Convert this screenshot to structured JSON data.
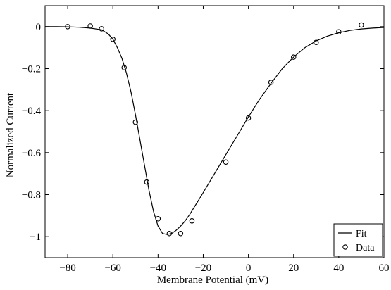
{
  "chart_data": {
    "type": "scatter",
    "title": "",
    "xlabel": "Membrane Potential (mV)",
    "ylabel": "Normalized Current",
    "xlim": [
      -90,
      60
    ],
    "ylim": [
      -1.1,
      0.1
    ],
    "x_ticks": [
      -80,
      -60,
      -40,
      -20,
      0,
      20,
      40,
      60
    ],
    "y_ticks": [
      0,
      -0.2,
      -0.4,
      -0.6,
      -0.8,
      -1
    ],
    "x_tick_labels": [
      "−80",
      "−60",
      "−40",
      "−20",
      "0",
      "20",
      "40",
      "60"
    ],
    "y_tick_labels": [
      "0",
      "−0.2",
      "−0.4",
      "−0.6",
      "−0.8",
      "−1"
    ],
    "grid": false,
    "legend": {
      "position": "bottom-right",
      "entries": [
        "Fit",
        "Data"
      ]
    },
    "series": [
      {
        "name": "Fit",
        "type": "line",
        "x": [
          -90,
          -85,
          -80,
          -75,
          -70,
          -65,
          -62,
          -60,
          -58,
          -56,
          -54,
          -52,
          -50,
          -48,
          -46,
          -44,
          -42,
          -40,
          -38,
          -36,
          -34,
          -32,
          -30,
          -28,
          -26,
          -24,
          -22,
          -20,
          -15,
          -10,
          -5,
          0,
          5,
          10,
          15,
          20,
          25,
          30,
          35,
          40,
          45,
          50,
          55,
          60
        ],
        "y": [
          0,
          0,
          -0.001,
          -0.003,
          -0.007,
          -0.015,
          -0.035,
          -0.06,
          -0.1,
          -0.15,
          -0.22,
          -0.31,
          -0.42,
          -0.54,
          -0.66,
          -0.78,
          -0.88,
          -0.95,
          -0.985,
          -0.99,
          -0.985,
          -0.97,
          -0.95,
          -0.925,
          -0.895,
          -0.86,
          -0.825,
          -0.79,
          -0.7,
          -0.61,
          -0.52,
          -0.43,
          -0.345,
          -0.27,
          -0.2,
          -0.145,
          -0.1,
          -0.068,
          -0.045,
          -0.029,
          -0.018,
          -0.011,
          -0.007,
          -0.004
        ]
      },
      {
        "name": "Data",
        "type": "scatter",
        "x": [
          -80,
          -70,
          -65,
          -60,
          -55,
          -50,
          -45,
          -40,
          -35,
          -30,
          -25,
          -10,
          0,
          10,
          20,
          30,
          40,
          50
        ],
        "y": [
          0.0,
          0.003,
          -0.01,
          -0.06,
          -0.195,
          -0.455,
          -0.74,
          -0.915,
          -0.985,
          -0.985,
          -0.925,
          -0.645,
          -0.435,
          -0.265,
          -0.145,
          -0.075,
          -0.025,
          0.008
        ]
      }
    ]
  }
}
